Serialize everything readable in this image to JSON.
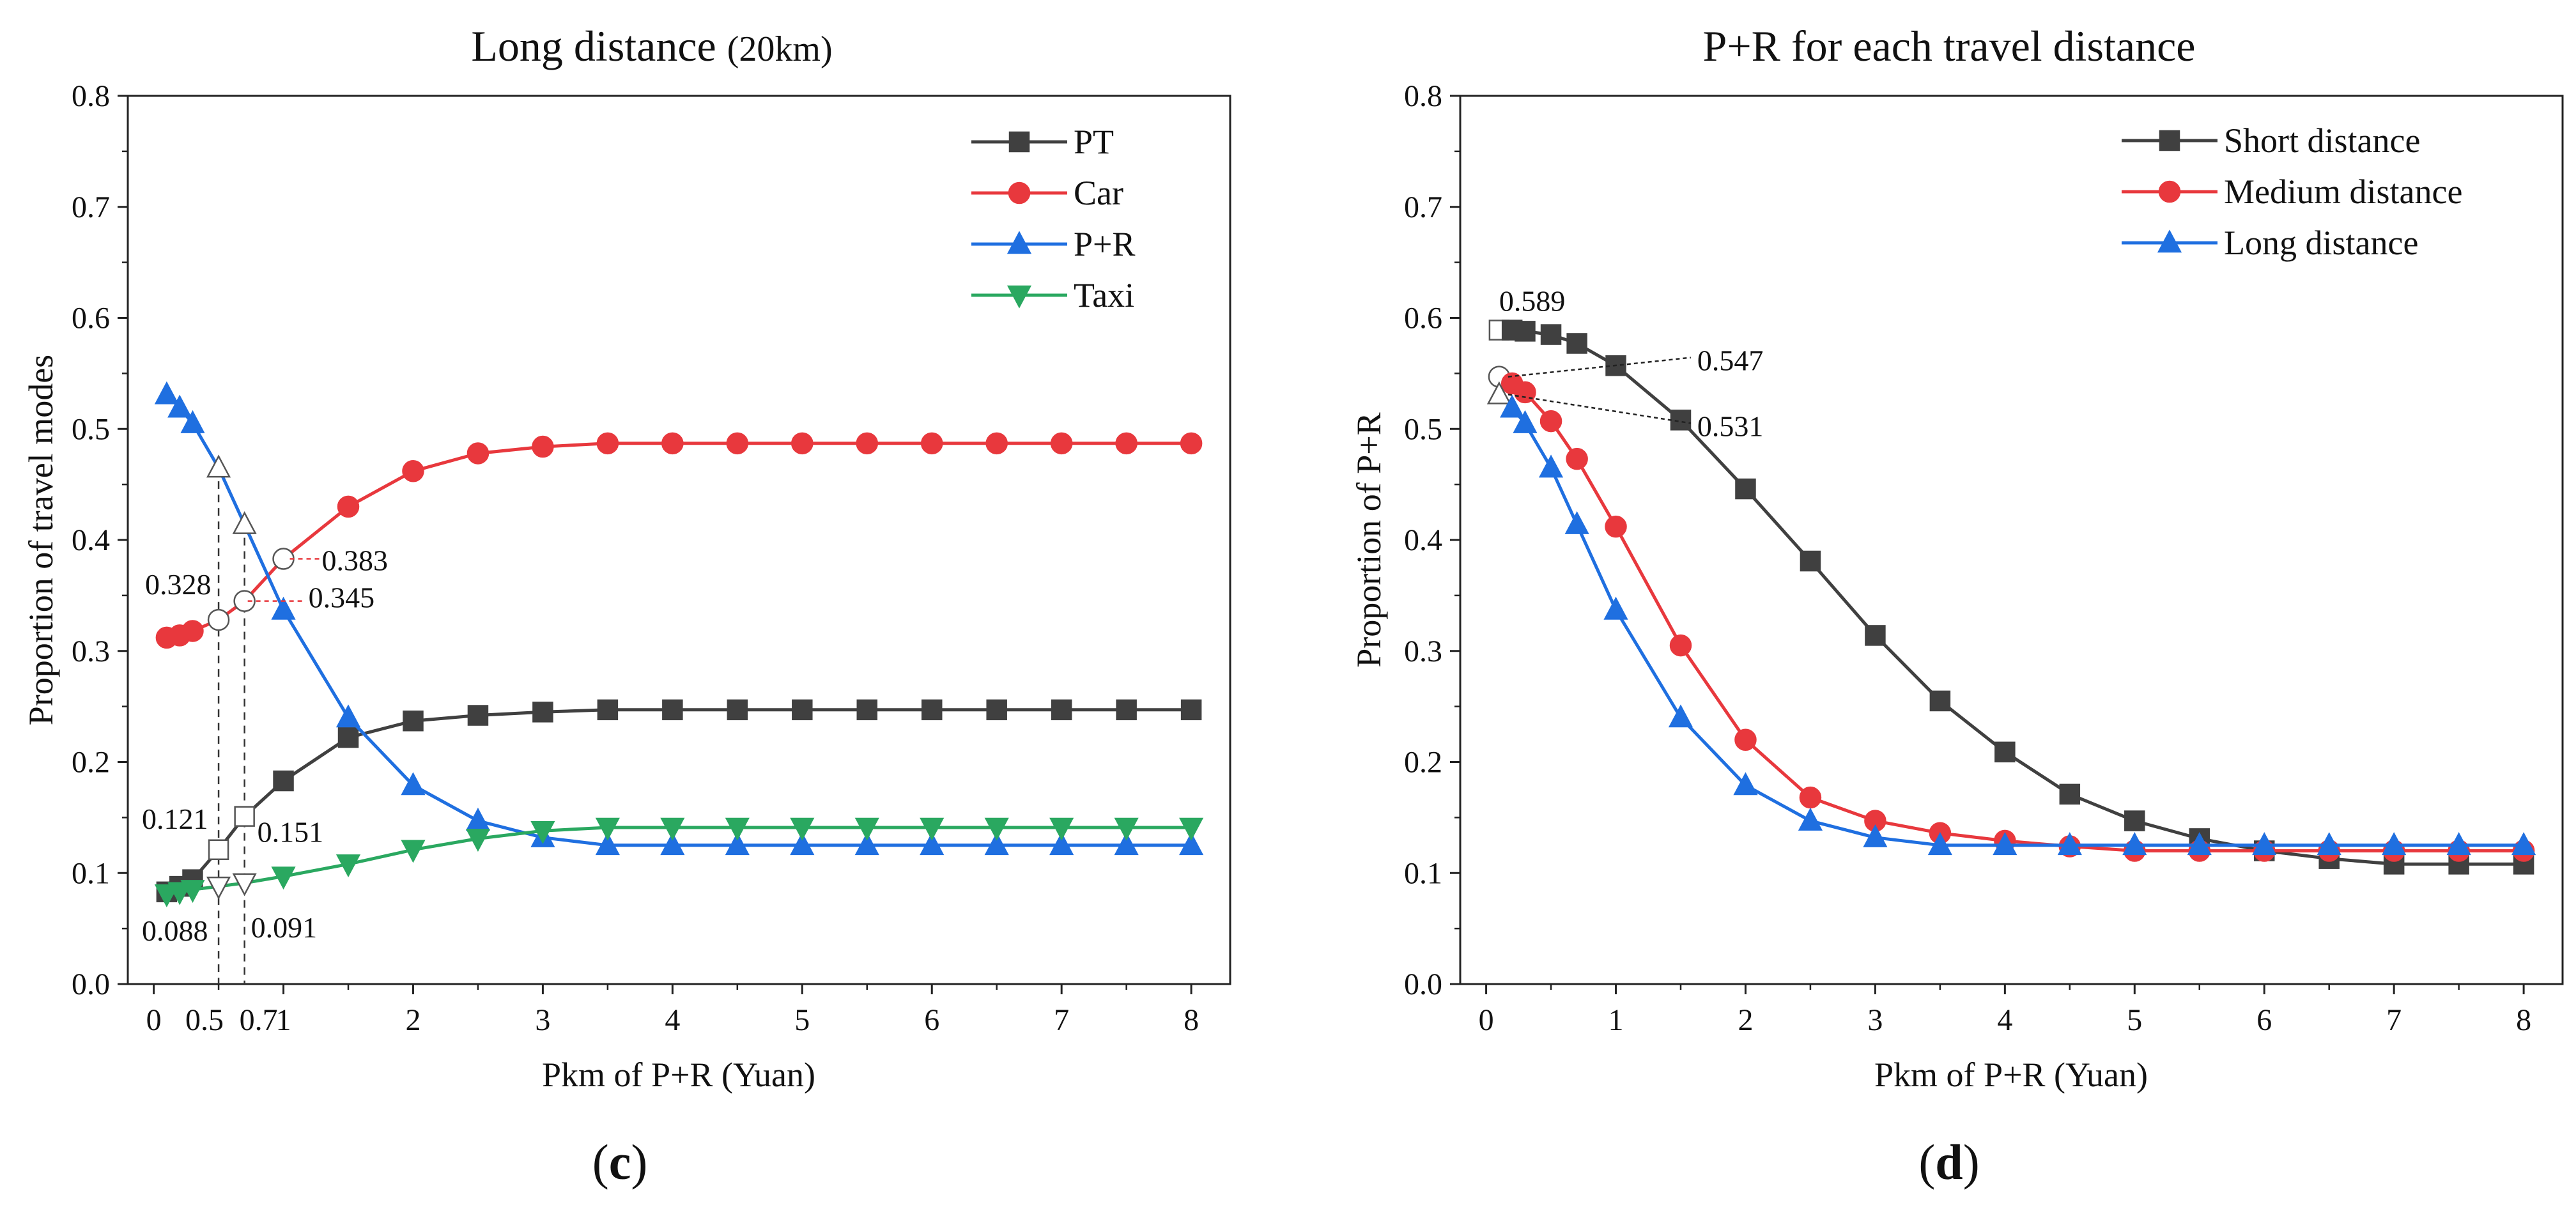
{
  "chart_data": [
    {
      "type": "line",
      "panel_label": "c",
      "title": "Long distance",
      "subtitle": "(20km)",
      "xlabel": "Pkm of P+R (Yuan)",
      "ylabel": "Proportion of travel modes",
      "xlim": [
        -0.2,
        8.3
      ],
      "ylim": [
        0,
        0.8
      ],
      "xticks": [
        0,
        1,
        2,
        3,
        4,
        5,
        6,
        7,
        8
      ],
      "yticks": [
        0.0,
        0.1,
        0.2,
        0.3,
        0.4,
        0.5,
        0.6,
        0.7,
        0.8
      ],
      "ytick_labels": [
        "0.0",
        "0.1",
        "0.2",
        "0.3",
        "0.4",
        "0.5",
        "0.6",
        "0.7",
        "0.8"
      ],
      "extra_xtick_labels": [
        {
          "x": 0.5,
          "label": "0.5"
        },
        {
          "x": 0.7,
          "label": "0.7"
        }
      ],
      "grid": false,
      "legend_position": "top-right",
      "x": [
        0.1,
        0.2,
        0.3,
        0.5,
        0.7,
        1,
        1.5,
        2,
        2.5,
        3,
        3.5,
        4,
        4.5,
        5,
        5.5,
        6,
        6.5,
        7,
        7.5,
        8
      ],
      "series": [
        {
          "name": "PT",
          "color": "#404040",
          "marker": "square",
          "values": [
            0.083,
            0.088,
            0.094,
            0.121,
            0.151,
            0.183,
            0.222,
            0.237,
            0.242,
            0.245,
            0.247,
            0.247,
            0.247,
            0.247,
            0.247,
            0.247,
            0.247,
            0.247,
            0.247,
            0.247
          ]
        },
        {
          "name": "Car",
          "color": "#e8383d",
          "marker": "circle",
          "values": [
            0.312,
            0.314,
            0.318,
            0.328,
            0.345,
            0.383,
            0.43,
            0.462,
            0.478,
            0.484,
            0.487,
            0.487,
            0.487,
            0.487,
            0.487,
            0.487,
            0.487,
            0.487,
            0.487,
            0.487
          ]
        },
        {
          "name": "P+R",
          "color": "#1f6fe0",
          "marker": "triangle-up",
          "values": [
            0.531,
            0.519,
            0.505,
            0.465,
            0.414,
            0.337,
            0.24,
            0.179,
            0.147,
            0.132,
            0.125,
            0.125,
            0.125,
            0.125,
            0.125,
            0.125,
            0.125,
            0.125,
            0.125,
            0.125
          ]
        },
        {
          "name": "Taxi",
          "color": "#2aa860",
          "marker": "triangle-down",
          "values": [
            0.081,
            0.083,
            0.085,
            0.088,
            0.091,
            0.097,
            0.108,
            0.121,
            0.131,
            0.138,
            0.141,
            0.141,
            0.141,
            0.141,
            0.141,
            0.141,
            0.141,
            0.141,
            0.141,
            0.141
          ]
        }
      ],
      "hollow_points": [
        {
          "series": "PT",
          "x": 0.5,
          "value": 0.121
        },
        {
          "series": "PT",
          "x": 0.7,
          "value": 0.151
        },
        {
          "series": "Car",
          "x": 0.5,
          "value": 0.328
        },
        {
          "series": "Car",
          "x": 0.7,
          "value": 0.345
        },
        {
          "series": "Car",
          "x": 1,
          "value": 0.383
        },
        {
          "series": "P+R",
          "x": 0.5,
          "value": 0.465
        },
        {
          "series": "P+R",
          "x": 0.7,
          "value": 0.414
        },
        {
          "series": "Taxi",
          "x": 0.5,
          "value": 0.088
        },
        {
          "series": "Taxi",
          "x": 0.7,
          "value": 0.091
        }
      ],
      "reference_lines": [
        {
          "x": 0.5
        },
        {
          "x": 0.7
        }
      ],
      "annotations": [
        {
          "text": "0.328",
          "x": 0.5,
          "y": 0.328
        },
        {
          "text": "0.345",
          "x": 0.7,
          "y": 0.345
        },
        {
          "text": "0.383",
          "x": 1,
          "y": 0.383
        },
        {
          "text": "0.121",
          "x": 0.5,
          "y": 0.121
        },
        {
          "text": "0.151",
          "x": 0.7,
          "y": 0.151
        },
        {
          "text": "0.088",
          "x": 0.5,
          "y": 0.088
        },
        {
          "text": "0.091",
          "x": 0.7,
          "y": 0.091
        }
      ]
    },
    {
      "type": "line",
      "panel_label": "d",
      "title": "P+R for each travel distance",
      "xlabel": "Pkm of P+R (Yuan)",
      "ylabel": "Proportion of  P+R",
      "xlim": [
        -0.2,
        8.3
      ],
      "ylim": [
        0,
        0.8
      ],
      "xticks": [
        0,
        1,
        2,
        3,
        4,
        5,
        6,
        7,
        8
      ],
      "yticks": [
        0.0,
        0.1,
        0.2,
        0.3,
        0.4,
        0.5,
        0.6,
        0.7,
        0.8
      ],
      "ytick_labels": [
        "0.0",
        "0.1",
        "0.2",
        "0.3",
        "0.4",
        "0.5",
        "0.6",
        "0.7",
        "0.8"
      ],
      "grid": false,
      "legend_position": "top-right",
      "x": [
        0.1,
        0.2,
        0.3,
        0.5,
        0.7,
        1,
        1.5,
        2,
        2.5,
        3,
        3.5,
        4,
        4.5,
        5,
        5.5,
        6,
        6.5,
        7,
        7.5,
        8
      ],
      "series": [
        {
          "name": "Short distance",
          "color": "#404040",
          "marker": "square",
          "values": [
            0.589,
            0.589,
            0.588,
            0.585,
            0.577,
            0.557,
            0.508,
            0.446,
            0.381,
            0.314,
            0.255,
            0.209,
            0.171,
            0.147,
            0.131,
            0.12,
            0.113,
            0.108,
            0.108,
            0.108
          ]
        },
        {
          "name": "Medium distance",
          "color": "#e8383d",
          "marker": "circle",
          "values": [
            0.547,
            0.541,
            0.533,
            0.507,
            0.473,
            0.412,
            0.305,
            0.22,
            0.168,
            0.147,
            0.136,
            0.129,
            0.124,
            0.12,
            0.12,
            0.12,
            0.12,
            0.12,
            0.12,
            0.12
          ]
        },
        {
          "name": "Long distance",
          "color": "#1f6fe0",
          "marker": "triangle-up",
          "values": [
            0.531,
            0.519,
            0.505,
            0.465,
            0.414,
            0.337,
            0.24,
            0.179,
            0.147,
            0.132,
            0.125,
            0.125,
            0.125,
            0.125,
            0.125,
            0.125,
            0.125,
            0.125,
            0.125,
            0.125
          ]
        }
      ],
      "hollow_points": [
        {
          "series": "Short distance",
          "x": 0.1,
          "value": 0.589
        },
        {
          "series": "Medium distance",
          "x": 0.1,
          "value": 0.547
        },
        {
          "series": "Long distance",
          "x": 0.1,
          "value": 0.531
        }
      ],
      "annotations": [
        {
          "text": "0.589",
          "x": 0.1,
          "y": 0.589
        },
        {
          "text": "0.547",
          "x": 0.1,
          "y": 0.547
        },
        {
          "text": "0.531",
          "x": 0.1,
          "y": 0.531
        }
      ]
    }
  ]
}
